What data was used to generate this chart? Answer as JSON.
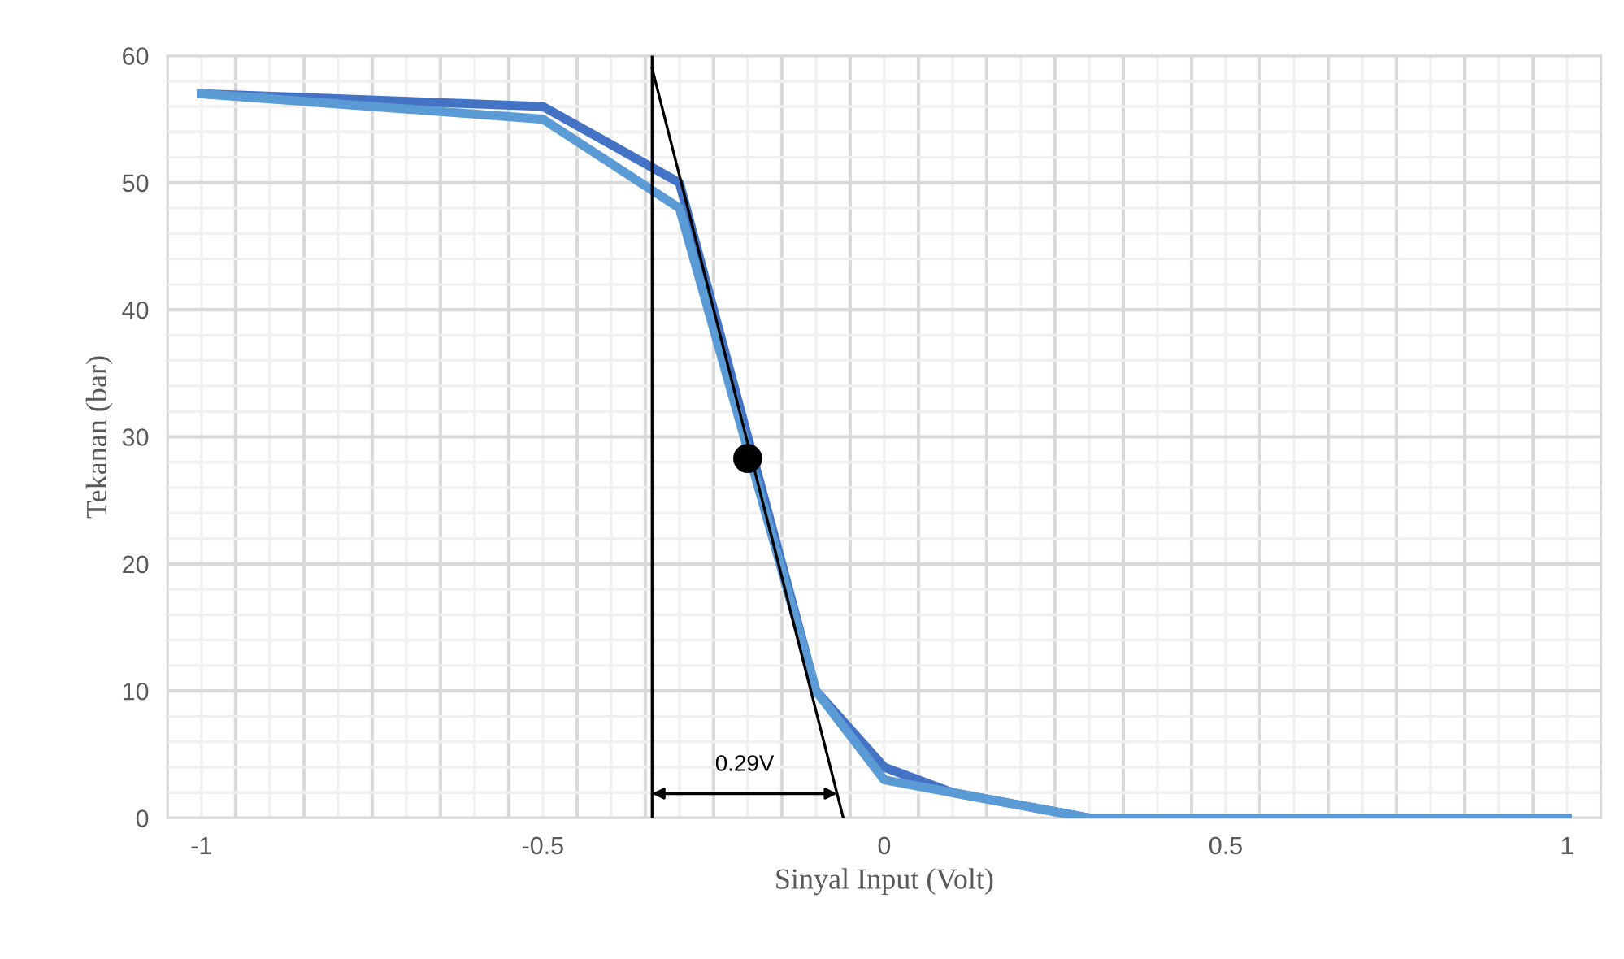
{
  "chart_data": {
    "type": "line",
    "xlabel": "Sinyal Input (Volt)",
    "ylabel": "Tekanan (bar)",
    "xlim": [
      -1.05,
      1.05
    ],
    "ylim": [
      0,
      60
    ],
    "xticks": [
      -1,
      -0.5,
      0,
      0.5,
      1
    ],
    "yticks": [
      0,
      10,
      20,
      30,
      40,
      50,
      60
    ],
    "grid": true,
    "series": [
      {
        "color": "#4472c4",
        "x": [
          -1,
          -0.5,
          -0.3,
          -0.1,
          0,
          0.1,
          0.3,
          1
        ],
        "values": [
          57,
          56,
          50,
          10,
          4,
          2,
          0,
          0
        ]
      },
      {
        "color": "#5b9bd5",
        "x": [
          -1,
          -0.5,
          -0.3,
          -0.1,
          0,
          0.1,
          0.3,
          1
        ],
        "values": [
          57,
          55,
          48,
          10,
          3,
          2,
          0,
          0
        ]
      },
      {
        "type": "line",
        "color": "#000000",
        "x": [
          -0.34,
          -0.06
        ],
        "values": [
          59,
          0
        ]
      },
      {
        "type": "scatter",
        "color": "#000000",
        "x": [
          -0.2
        ],
        "values": [
          28.3
        ]
      }
    ],
    "ref_lines": [
      {
        "axis": "x",
        "value": -0.34,
        "color": "#000000"
      }
    ],
    "annotations": [
      "0.29V"
    ]
  }
}
